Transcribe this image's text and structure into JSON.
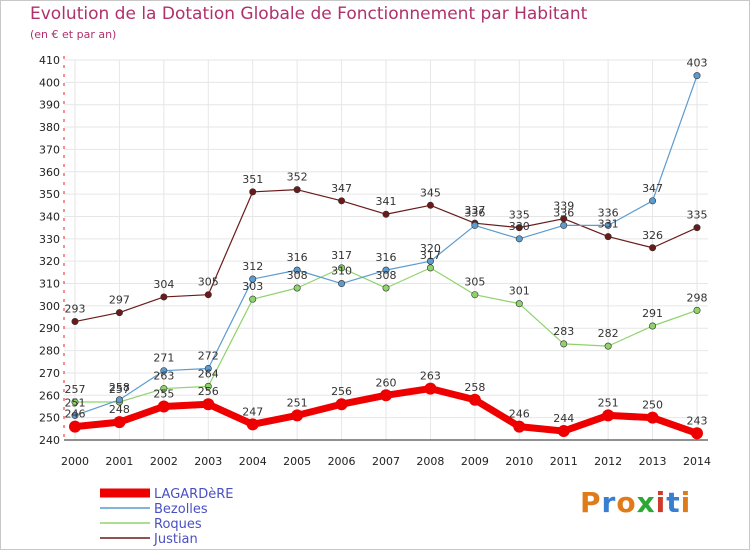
{
  "title": "Evolution de la Dotation Globale de Fonctionnement par Habitant",
  "subtitle": "(en € et par an)",
  "brand": {
    "text": "Proxiti",
    "colors": [
      "#e07b1a",
      "#3a7fcf",
      "#e07b1a",
      "#2da836",
      "#d13a2a",
      "#3a7fcf",
      "#e07b1a"
    ]
  },
  "chart_data": {
    "type": "line",
    "x": [
      "2000",
      "2001",
      "2002",
      "2003",
      "2004",
      "2005",
      "2006",
      "2007",
      "2008",
      "2009",
      "2010",
      "2011",
      "2012",
      "2013",
      "2014"
    ],
    "ylim": [
      240,
      410
    ],
    "yticks": [
      240,
      250,
      260,
      270,
      280,
      290,
      300,
      310,
      320,
      330,
      340,
      350,
      360,
      370,
      380,
      390,
      400,
      410
    ],
    "grid": true,
    "legend_position": "bottom-left",
    "series": [
      {
        "name": "Justian",
        "color": "#6b1a1a",
        "width": 1.2,
        "values": [
          293,
          297,
          304,
          305,
          351,
          352,
          347,
          341,
          345,
          337,
          335,
          339,
          331,
          326,
          335
        ],
        "labels": [
          "293",
          "297",
          "304",
          "305",
          "351",
          "352",
          "347",
          "341",
          "345",
          "337",
          "335",
          "339",
          "331",
          "326",
          "335"
        ]
      },
      {
        "name": "Roques",
        "color": "#8fd36b",
        "width": 1.2,
        "values": [
          257,
          257,
          263,
          264,
          303,
          308,
          317,
          308,
          317,
          305,
          301,
          283,
          282,
          291,
          298
        ],
        "labels": [
          "257",
          "257",
          "263",
          "264",
          "303",
          "308",
          "317",
          "308",
          "317",
          "305",
          "301",
          "283",
          "282",
          "291",
          "298"
        ]
      },
      {
        "name": "Bezolles",
        "color": "#5b9bd0",
        "width": 1.2,
        "values": [
          251,
          258,
          271,
          272,
          312,
          316,
          310,
          316,
          320,
          336,
          330,
          336,
          336,
          347,
          403
        ],
        "labels": [
          "251",
          "258",
          "271",
          "272",
          "312",
          "316",
          "310",
          "316",
          "320",
          "336",
          "330",
          "336",
          "336",
          "347",
          "403"
        ]
      },
      {
        "name": "LAGARDèRE",
        "color": "#ee0000",
        "width": 7,
        "values": [
          246,
          248,
          255,
          256,
          247,
          251,
          256,
          260,
          263,
          258,
          246,
          244,
          251,
          250,
          243
        ],
        "labels": [
          "246",
          "248",
          "255",
          "256",
          "247",
          "251",
          "256",
          "260",
          "263",
          "258",
          "246",
          "244",
          "251",
          "250",
          "243"
        ]
      }
    ],
    "legend": [
      "LAGARDèRE",
      "Bezolles",
      "Roques",
      "Justian"
    ]
  }
}
